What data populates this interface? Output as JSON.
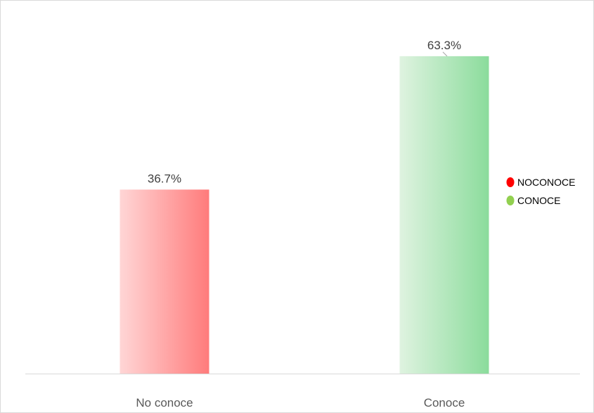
{
  "chart_data": {
    "type": "bar",
    "title": "",
    "xlabel": "",
    "ylabel": "",
    "categories": [
      "No conoce",
      "Conoce"
    ],
    "values": [
      36.7,
      63.3
    ],
    "data_labels": [
      "36.7%",
      "63.3%"
    ],
    "ylim": [
      0,
      70
    ],
    "grid": false,
    "legend": {
      "placement": "right",
      "entries": [
        {
          "label": "NOCONOCE",
          "color": "#ff0000"
        },
        {
          "label": "CONOCE",
          "color": "#92d050"
        }
      ]
    },
    "bar_colors": [
      {
        "light": "#ffd6d6",
        "dark": "#ff7b7b"
      },
      {
        "light": "#dff3e0",
        "dark": "#8bdc9c"
      }
    ],
    "value_unit": "%"
  }
}
